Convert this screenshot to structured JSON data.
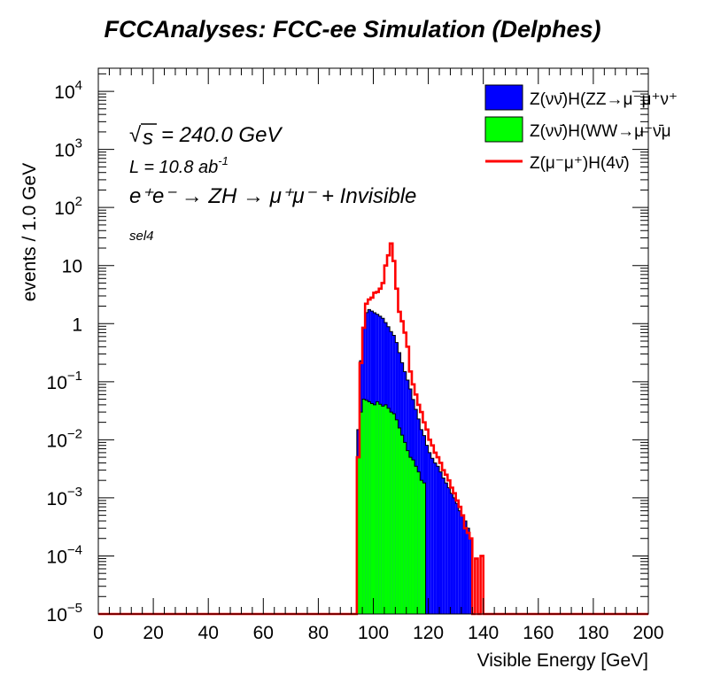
{
  "chart_data": {
    "type": "histogram-stacked-log",
    "title": "FCCAnalyses: FCC-ee Simulation (Delphes)",
    "xlabel": "Visible Energy [GeV]",
    "ylabel": "events / 1.0 GeV",
    "xlim": [
      0,
      200
    ],
    "ylim": [
      1e-05,
      25000
    ],
    "y_scale": "log",
    "x_ticks": [
      0,
      20,
      40,
      60,
      80,
      100,
      120,
      140,
      160,
      180,
      200
    ],
    "x_tick_labels": [
      "0",
      "20",
      "40",
      "60",
      "80",
      "100",
      "120",
      "140",
      "160",
      "180",
      "200"
    ],
    "y_ticks": [
      1e-05,
      0.0001,
      0.001,
      0.01,
      0.1,
      1,
      10,
      100,
      1000,
      10000
    ],
    "y_tick_labels": [
      {
        "base": "10",
        "exp": "−5"
      },
      {
        "base": "10",
        "exp": "−4"
      },
      {
        "base": "10",
        "exp": "−3"
      },
      {
        "base": "10",
        "exp": "−2"
      },
      {
        "base": "10",
        "exp": "−1"
      },
      {
        "base": "1",
        "exp": ""
      },
      {
        "base": "10",
        "exp": ""
      },
      {
        "base": "10",
        "exp": "2"
      },
      {
        "base": "10",
        "exp": "3"
      },
      {
        "base": "10",
        "exp": "4"
      }
    ],
    "bin_width": 1.0,
    "annotations": {
      "sqrt_s": "s",
      "sqrt_s_value": "= 240.0 GeV",
      "lumi_prefix": "L = 10.8 ab",
      "lumi_exp": "-1",
      "process": "e⁺e⁻ → ZH → μ⁺μ⁻ + Invisible",
      "selection": "sel4"
    },
    "legend": {
      "position": "top-right",
      "entries": [
        {
          "label": "Z(νν̄)H(ZZ→μ⁻μ⁺ν⁺",
          "style": "fill",
          "color": "#0000ff"
        },
        {
          "label": "Z(νν̄)H(WW→μ⁻ν̄μ",
          "style": "fill",
          "color": "#00ff00"
        },
        {
          "label": "Z(μ⁻μ⁺)H(4ν̄)",
          "style": "line",
          "color": "#ff0000"
        }
      ]
    },
    "series": [
      {
        "name": "Z(νν̄)H(WW→μ⁻ν̄μ",
        "color": "#00ff00",
        "x_edges": [
          94,
          95,
          96,
          97,
          98,
          99,
          100,
          101,
          102,
          103,
          104,
          105,
          106,
          107,
          108,
          109,
          110,
          111,
          112,
          113,
          114,
          115,
          116,
          117,
          118,
          119,
          120
        ],
        "values": [
          0.005,
          0.03,
          0.05,
          0.048,
          0.045,
          0.042,
          0.04,
          0.045,
          0.041,
          0.038,
          0.04,
          0.035,
          0.03,
          0.028,
          0.022,
          0.016,
          0.012,
          0.009,
          0.0065,
          0.005,
          0.0045,
          0.0035,
          0.0028,
          0.002,
          0.0018,
          1e-05
        ]
      },
      {
        "name": "Z(νν̄)H(ZZ→μ⁻μ⁺ν⁺",
        "color": "#0000ff",
        "x_edges": [
          94,
          95,
          96,
          97,
          98,
          99,
          100,
          101,
          102,
          103,
          104,
          105,
          106,
          107,
          108,
          109,
          110,
          111,
          112,
          113,
          114,
          115,
          116,
          117,
          118,
          119,
          120,
          121,
          122,
          123,
          124,
          125,
          126,
          127,
          128,
          129,
          130,
          131,
          132,
          133,
          134,
          135,
          136
        ],
        "values": [
          0.01,
          0.2,
          0.8,
          1.5,
          1.7,
          1.6,
          1.5,
          1.4,
          1.3,
          1.2,
          1.0,
          0.85,
          0.7,
          0.6,
          0.45,
          0.3,
          0.2,
          0.14,
          0.1,
          0.07,
          0.045,
          0.03,
          0.02,
          0.013,
          0.01,
          0.008,
          0.006,
          0.0048,
          0.004,
          0.0035,
          0.0028,
          0.0022,
          0.0018,
          0.0015,
          0.0012,
          0.001,
          0.0008,
          0.0006,
          0.0005,
          0.0004,
          0.0003,
          0.0002
        ]
      },
      {
        "name": "Z(μ⁻μ⁺)H(4ν̄)",
        "color": "#ff0000",
        "x_edges": [
          94,
          95,
          96,
          97,
          98,
          99,
          100,
          101,
          102,
          103,
          104,
          105,
          106,
          107,
          108,
          109,
          110,
          111,
          112,
          113,
          114,
          115,
          116,
          117,
          118,
          119,
          120,
          121,
          122,
          123,
          124,
          125,
          126,
          127,
          128,
          129,
          130,
          131,
          132,
          133,
          134,
          135,
          136,
          137,
          138,
          139,
          140
        ],
        "values": [
          0.005,
          0.21,
          0.85,
          2.2,
          2.6,
          2.8,
          3.4,
          3.5,
          4.0,
          5.0,
          10,
          15,
          24,
          12,
          4,
          1.6,
          1.1,
          0.7,
          0.4,
          0.15,
          0.09,
          0.06,
          0.04,
          0.03,
          0.02,
          0.015,
          0.01,
          0.008,
          0.006,
          0.005,
          0.004,
          0.003,
          0.0025,
          0.002,
          0.0015,
          0.0012,
          0.0009,
          0.0007,
          0.0005,
          0.0003,
          0.00025,
          0.0002,
          1e-05,
          9e-05,
          1e-05,
          0.0001
        ]
      }
    ],
    "baseline": 9e-06
  }
}
